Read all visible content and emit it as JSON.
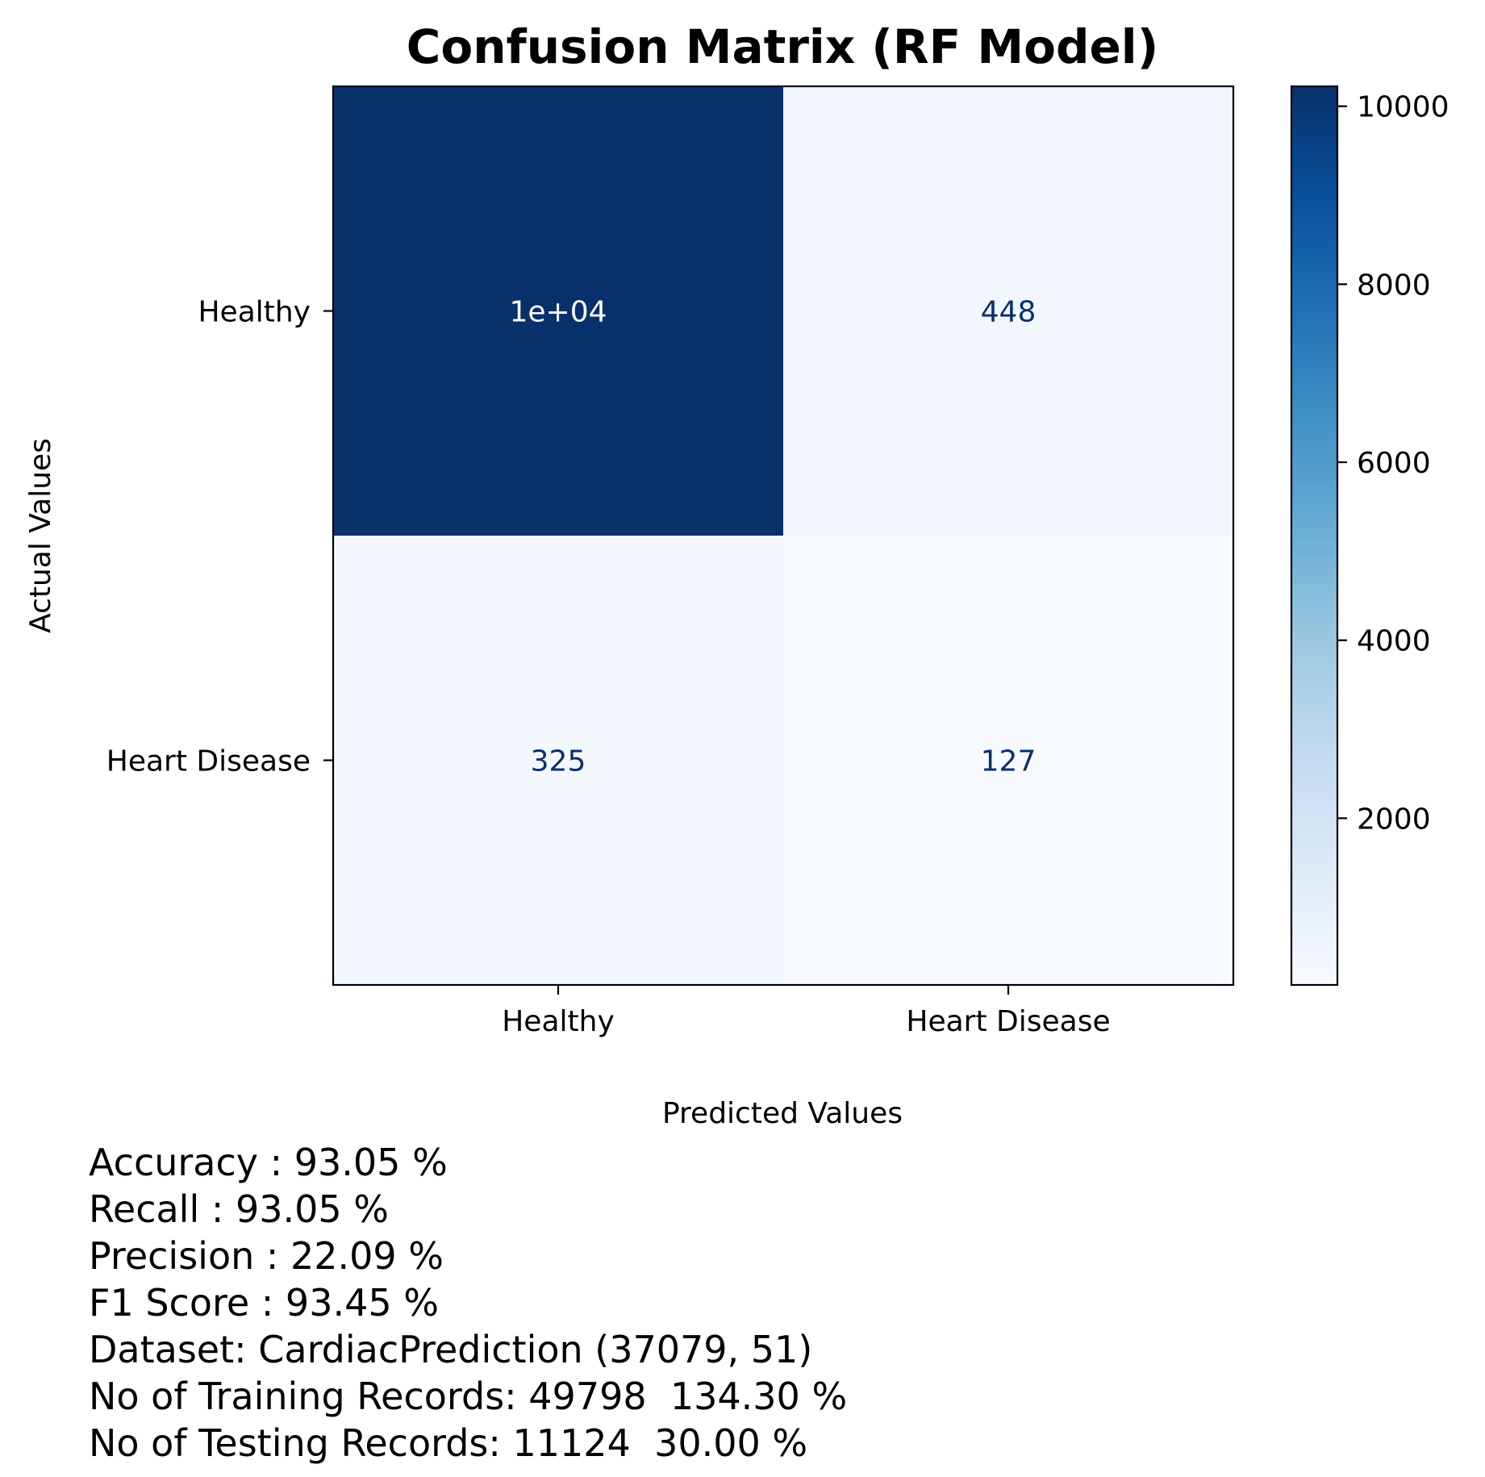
{
  "chart_data": {
    "type": "heatmap",
    "title": "Confusion Matrix (RF Model)",
    "xlabel": "Predicted Values",
    "ylabel": "Actual Values",
    "x_categories": [
      "Healthy",
      "Heart Disease"
    ],
    "y_categories": [
      "Healthy",
      "Heart Disease"
    ],
    "values": [
      [
        10224,
        448
      ],
      [
        325,
        127
      ]
    ],
    "cell_labels": [
      [
        "1e+04",
        "448"
      ],
      [
        "325",
        "127"
      ]
    ],
    "colormap": "Blues",
    "colorbar": {
      "range": [
        127,
        10224
      ],
      "ticks": [
        2000,
        4000,
        6000,
        8000,
        10000
      ],
      "tick_labels": [
        "2000",
        "4000",
        "6000",
        "8000",
        "10000"
      ]
    }
  },
  "metrics": [
    "Accuracy : 93.05 %",
    "Recall : 93.05 %",
    "Precision : 22.09 %",
    "F1 Score : 93.45 %",
    "Dataset: CardiacPrediction (37079, 51)",
    "No of Training Records: 49798  134.30 %",
    "No of Testing Records: 11124  30.00 %"
  ]
}
